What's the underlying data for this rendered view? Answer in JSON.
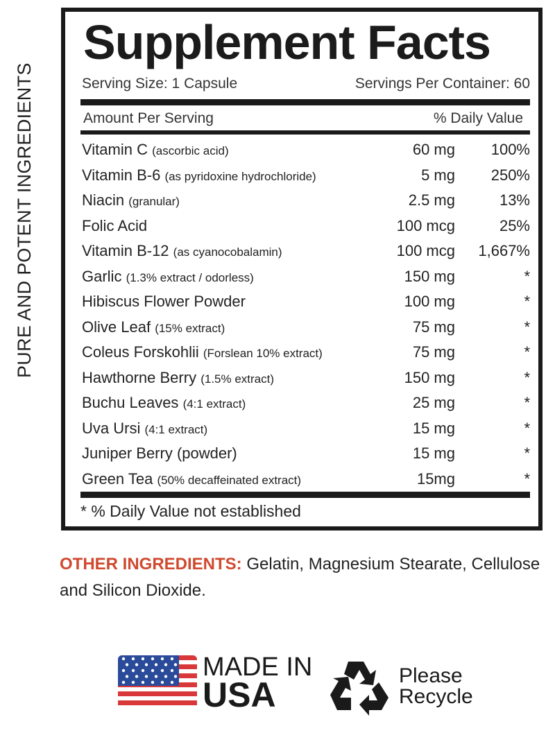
{
  "side_text": "PURE AND POTENT INGREDIENTS",
  "title": "Supplement Facts",
  "serving_size": "Serving Size: 1 Capsule",
  "servings_per_container": "Servings Per Container: 60",
  "header": {
    "amount": "Amount Per Serving",
    "daily_value": "% Daily Value"
  },
  "rows": [
    {
      "name": "Vitamin C",
      "detail": "(ascorbic acid)",
      "amount": "60 mg",
      "dv": "100%"
    },
    {
      "name": "Vitamin B-6",
      "detail": "(as pyridoxine hydrochloride)",
      "amount": "5 mg",
      "dv": "250%"
    },
    {
      "name": "Niacin",
      "detail": "(granular)",
      "amount": "2.5 mg",
      "dv": "13%"
    },
    {
      "name": "Folic Acid",
      "detail": "",
      "amount": "100 mcg",
      "dv": "25%"
    },
    {
      "name": "Vitamin B-12",
      "detail": "(as cyanocobalamin)",
      "amount": "100 mcg",
      "dv": "1,667%"
    },
    {
      "name": "Garlic",
      "detail": "(1.3% extract / odorless)",
      "amount": "150 mg",
      "dv": "*"
    },
    {
      "name": "Hibiscus Flower Powder",
      "detail": "",
      "amount": "100 mg",
      "dv": "*"
    },
    {
      "name": "Olive Leaf",
      "detail": "(15% extract)",
      "amount": "75 mg",
      "dv": "*"
    },
    {
      "name": "Coleus Forskohlii",
      "detail": "(Forslean 10% extract)",
      "amount": "75 mg",
      "dv": "*"
    },
    {
      "name": "Hawthorne Berry",
      "detail": "(1.5% extract)",
      "amount": "150 mg",
      "dv": "*"
    },
    {
      "name": "Buchu Leaves",
      "detail": "(4:1 extract)",
      "amount": "25 mg",
      "dv": "*"
    },
    {
      "name": "Uva Ursi",
      "detail": "(4:1 extract)",
      "amount": "15 mg",
      "dv": "*"
    },
    {
      "name": "Juniper Berry (powder)",
      "detail": "",
      "amount": "15 mg",
      "dv": "*"
    },
    {
      "name": "Green Tea",
      "detail": "(50% decaffeinated extract)",
      "amount": "15mg",
      "dv": "*"
    }
  ],
  "footnote": "* % Daily Value not established",
  "other_ingredients": {
    "label": "OTHER INGREDIENTS:",
    "text": " Gelatin, Magnesium Stearate, Cellulose and Silicon Dioxide."
  },
  "badges": {
    "made_in": "MADE IN",
    "usa": "USA",
    "please": "Please",
    "recycle": "Recycle"
  },
  "colors": {
    "accent": "#d0492f",
    "text": "#222222",
    "flag_red": "#d8383a",
    "flag_blue": "#2a4a9a"
  },
  "icons": [
    "us-flag-icon",
    "recycle-icon"
  ]
}
